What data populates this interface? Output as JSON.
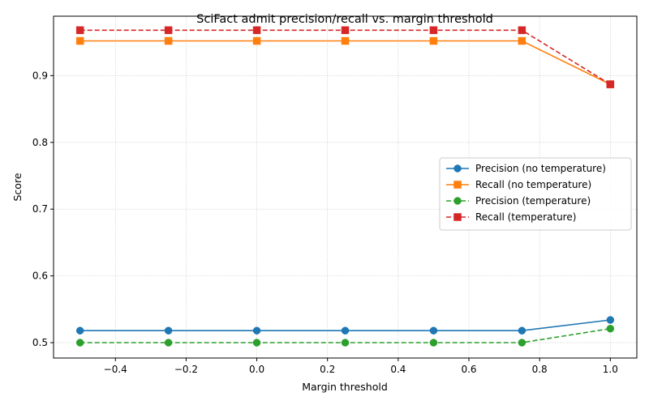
{
  "chart_data": {
    "type": "line",
    "title": "SciFact admit precision/recall vs. margin threshold",
    "xlabel": "Margin threshold",
    "ylabel": "Score",
    "x": [
      -0.5,
      -0.25,
      0.0,
      0.25,
      0.5,
      0.75,
      1.0
    ],
    "xlim": [
      -0.575,
      1.075
    ],
    "ylim": [
      0.477,
      0.989
    ],
    "xticks": [
      -0.4,
      -0.2,
      0.0,
      0.2,
      0.4,
      0.6,
      0.8,
      1.0
    ],
    "xtick_labels": [
      "−0.4",
      "−0.2",
      "0.0",
      "0.2",
      "0.4",
      "0.6",
      "0.8",
      "1.0"
    ],
    "yticks": [
      0.5,
      0.6,
      0.7,
      0.8,
      0.9
    ],
    "ytick_labels": [
      "0.5",
      "0.6",
      "0.7",
      "0.8",
      "0.9"
    ],
    "grid": true,
    "legend_position": "center-right",
    "series": [
      {
        "name": "Precision (no temperature)",
        "values": [
          0.518,
          0.518,
          0.518,
          0.518,
          0.518,
          0.518,
          0.534
        ],
        "color": "#1f77b4",
        "linestyle": "solid",
        "marker": "circle"
      },
      {
        "name": "Recall (no temperature)",
        "values": [
          0.952,
          0.952,
          0.952,
          0.952,
          0.952,
          0.952,
          0.887
        ],
        "color": "#ff7f0e",
        "linestyle": "solid",
        "marker": "square"
      },
      {
        "name": "Precision (temperature)",
        "values": [
          0.5,
          0.5,
          0.5,
          0.5,
          0.5,
          0.5,
          0.521
        ],
        "color": "#2ca02c",
        "linestyle": "dashed",
        "marker": "circle"
      },
      {
        "name": "Recall (temperature)",
        "values": [
          0.968,
          0.968,
          0.968,
          0.968,
          0.968,
          0.968,
          0.887
        ],
        "color": "#d62728",
        "linestyle": "dashed",
        "marker": "square"
      }
    ]
  }
}
